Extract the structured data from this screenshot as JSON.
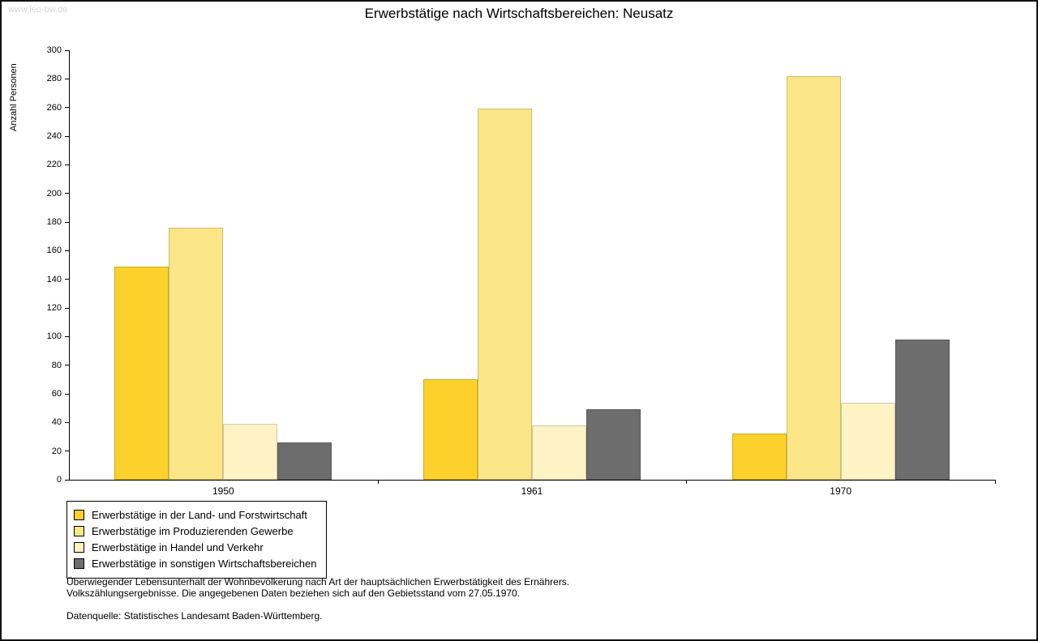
{
  "watermark": "www.leo-bw.de",
  "title": "Erwerbstätige nach Wirtschaftsbereichen: Neusatz",
  "chart_data": {
    "type": "bar",
    "title": "Erwerbstätige nach Wirtschaftsbereichen: Neusatz",
    "xlabel": "",
    "ylabel": "Anzahl Personen",
    "ylim": [
      0,
      300
    ],
    "ytick_step": 20,
    "grid": false,
    "legend_position": "bottom-left",
    "categories": [
      "1950",
      "1961",
      "1970"
    ],
    "series": [
      {
        "name": "Erwerbstätige in der Land- und Forstwirtschaft",
        "color": "#fcd12b",
        "values": [
          149,
          70,
          32
        ]
      },
      {
        "name": "Erwerbstätige im Produzierenden Gewerbe",
        "color": "#fae687",
        "values": [
          176,
          259,
          282
        ]
      },
      {
        "name": "Erwerbstätige in Handel und Verkehr",
        "color": "#fdf3c4",
        "values": [
          39,
          38,
          54
        ]
      },
      {
        "name": "Erwerbstätige in sonstigen Wirtschaftsbereichen",
        "color": "#6d6d6d",
        "values": [
          26,
          49,
          98
        ]
      }
    ]
  },
  "footer": {
    "note_line1": "Überwiegender Lebensunterhalt der Wohnbevölkerung nach Art der hauptsächlichen Erwerbstätigkeit des Ernährers.",
    "note_line2": "Volkszählungsergebnisse. Die angegebenen Daten beziehen sich auf den Gebietsstand vom 27.05.1970.",
    "source": "Datenquelle: Statistisches Landesamt Baden-Württemberg."
  }
}
